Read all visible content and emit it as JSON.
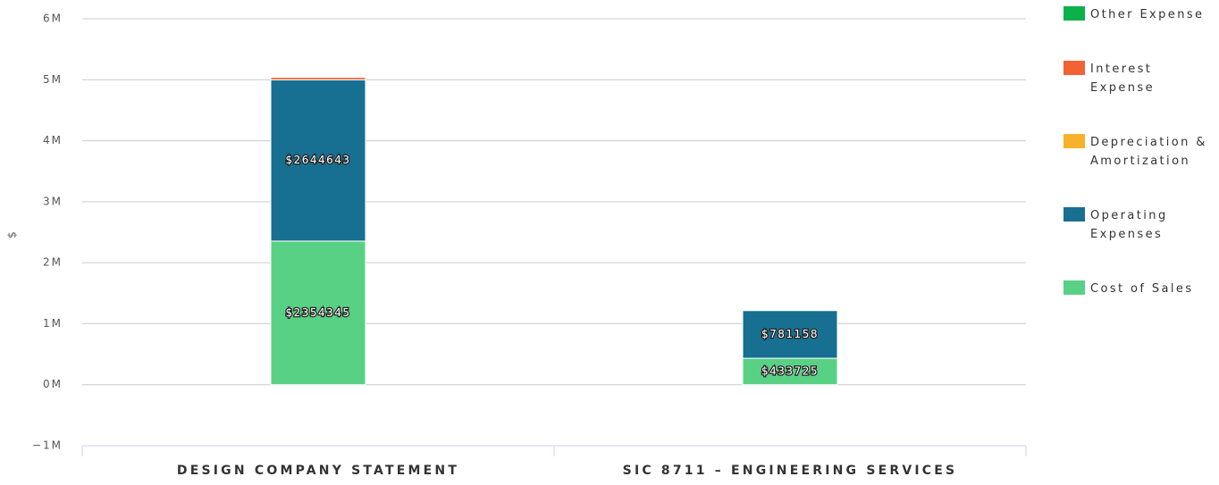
{
  "chart_data": {
    "type": "stacked-bar",
    "y_label": "$",
    "categories": [
      "DESIGN COMPANY STATEMENT",
      "SIC 8711 – ENGINEERING SERVICES"
    ],
    "series": [
      {
        "name": "Cost of Sales",
        "color": "#59d185",
        "values": [
          2354345,
          433725
        ],
        "value_labels": [
          "$2354345",
          "$433725"
        ]
      },
      {
        "name": "Operating Expenses",
        "color": "#176f91",
        "values": [
          2644643,
          781158
        ],
        "value_labels": [
          "$2644643",
          "$781158"
        ]
      },
      {
        "name": "Depreciation & Amortization",
        "color": "#f8b12b",
        "values": [
          0,
          0
        ]
      },
      {
        "name": "Interest Expense",
        "color": "#f26234",
        "values": [
          40000,
          0
        ]
      },
      {
        "name": "Other Expense",
        "color": "#0db14b",
        "values": [
          0,
          0
        ]
      }
    ],
    "ylim": [
      -1000000,
      6000000
    ],
    "yticks": [
      {
        "value": -1000000,
        "label": "−1M"
      },
      {
        "value": 0,
        "label": "0M"
      },
      {
        "value": 1000000,
        "label": "1M"
      },
      {
        "value": 2000000,
        "label": "2M"
      },
      {
        "value": 3000000,
        "label": "3M"
      },
      {
        "value": 4000000,
        "label": "4M"
      },
      {
        "value": 5000000,
        "label": "5M"
      },
      {
        "value": 6000000,
        "label": "6M"
      }
    ],
    "grid": true,
    "legend": "right"
  }
}
